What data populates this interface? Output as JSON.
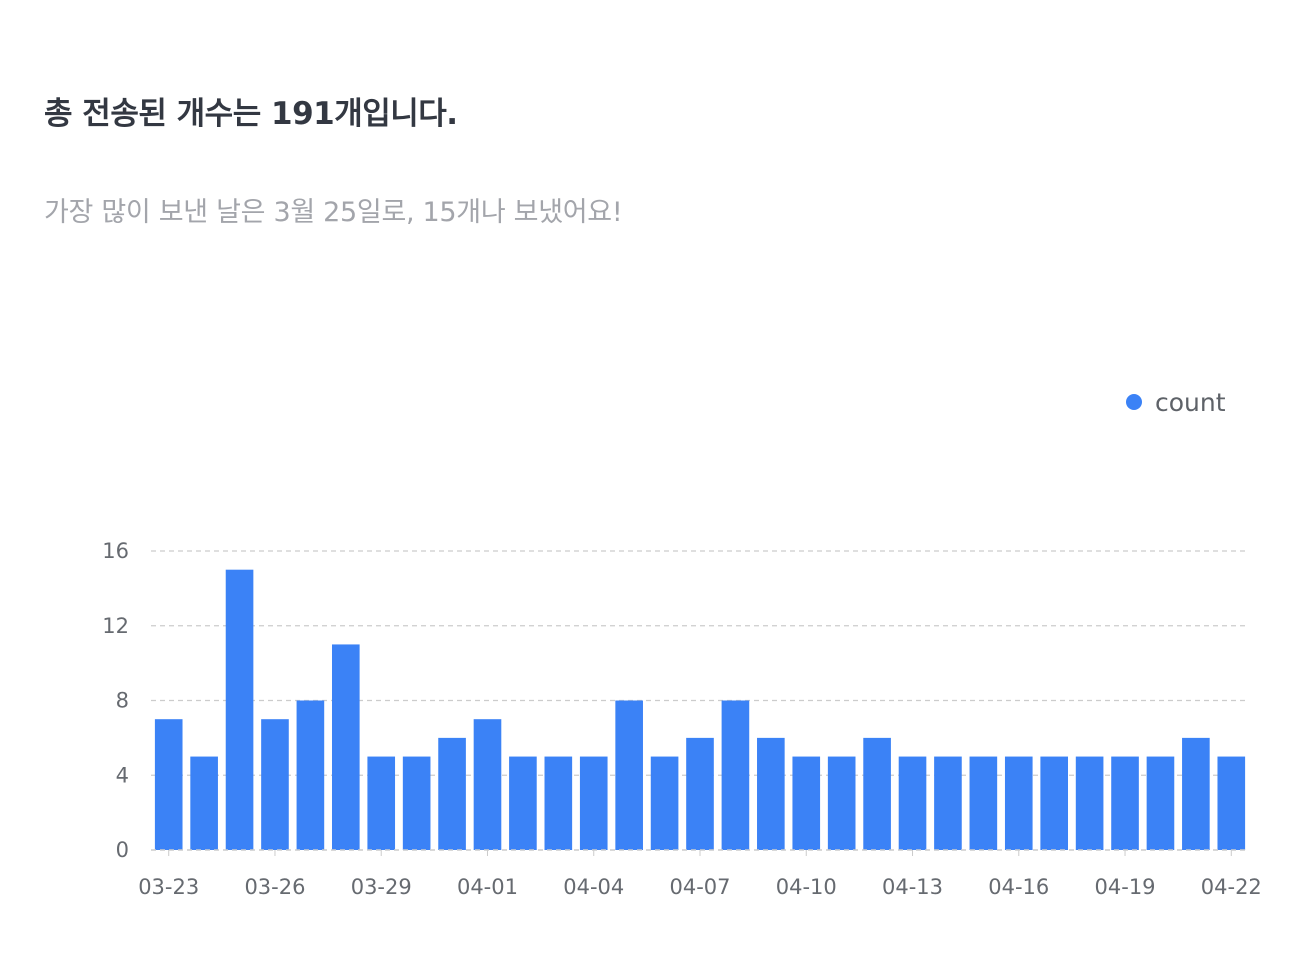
{
  "summary": {
    "title": "총 전송된 개수는 191개입니다.",
    "subtitle": "가장 많이 보낸 날은 3월 25일로, 15개나 보냈어요!"
  },
  "colors": {
    "bar": "#3b82f6",
    "grid": "#cccccc",
    "title": "#333842",
    "subtitle": "#a3a5ab",
    "tick": "#666a70"
  },
  "chart_data": {
    "type": "bar",
    "categories": [
      "03-23",
      "03-24",
      "03-25",
      "03-26",
      "03-27",
      "03-28",
      "03-29",
      "03-30",
      "03-31",
      "04-01",
      "04-02",
      "04-03",
      "04-04",
      "04-05",
      "04-06",
      "04-07",
      "04-08",
      "04-09",
      "04-10",
      "04-11",
      "04-12",
      "04-13",
      "04-14",
      "04-15",
      "04-16",
      "04-17",
      "04-18",
      "04-19",
      "04-20",
      "04-21",
      "04-22"
    ],
    "x_tick_labels": [
      "03-23",
      "03-26",
      "03-29",
      "04-01",
      "04-04",
      "04-07",
      "04-10",
      "04-13",
      "04-16",
      "04-19",
      "04-22"
    ],
    "series": [
      {
        "name": "count",
        "values": [
          7,
          5,
          15,
          7,
          8,
          11,
          5,
          5,
          6,
          7,
          5,
          5,
          5,
          8,
          5,
          6,
          8,
          6,
          5,
          5,
          6,
          5,
          5,
          5,
          5,
          5,
          5,
          5,
          5,
          6,
          5
        ]
      }
    ],
    "ylim": [
      0,
      16
    ],
    "y_ticks": [
      0,
      4,
      8,
      12,
      16
    ],
    "grid": true,
    "grid_style": "dashed-horizontal",
    "legend": "top-right",
    "title": "",
    "xlabel": "",
    "ylabel": ""
  }
}
